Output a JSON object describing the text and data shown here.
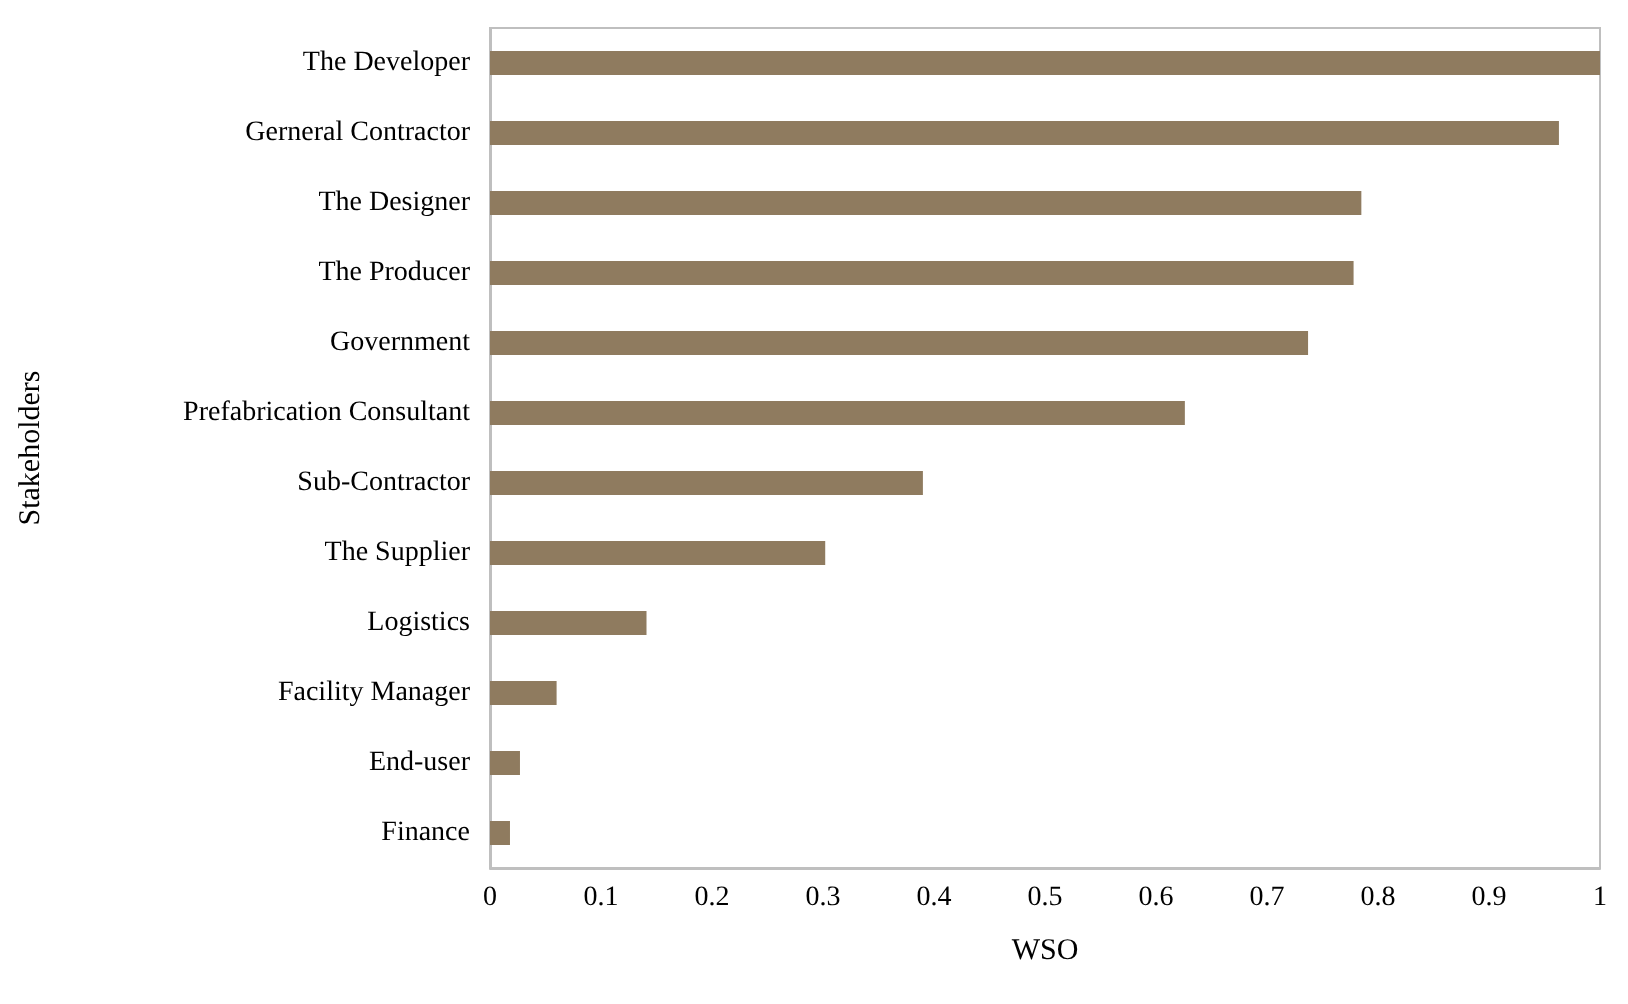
{
  "chart_data": {
    "type": "bar",
    "orientation": "horizontal",
    "xlabel": "WSO",
    "ylabel": "Stakeholders",
    "categories": [
      "The Developer",
      "Gerneral Contractor",
      "The Designer",
      "The Producer",
      "Government",
      "Prefabrication Consultant",
      "Sub-Contractor",
      "The Supplier",
      "Logistics",
      "Facility Manager",
      "End-user",
      "Finance"
    ],
    "values": [
      1.0,
      0.963,
      0.785,
      0.778,
      0.737,
      0.626,
      0.39,
      0.302,
      0.141,
      0.06,
      0.027,
      0.018
    ],
    "color": "#8f7b5f",
    "xlim": [
      0,
      1
    ],
    "xticks": [
      0,
      0.1,
      0.2,
      0.3,
      0.4,
      0.5,
      0.6,
      0.7,
      0.8,
      0.9,
      1
    ],
    "grid": false
  }
}
